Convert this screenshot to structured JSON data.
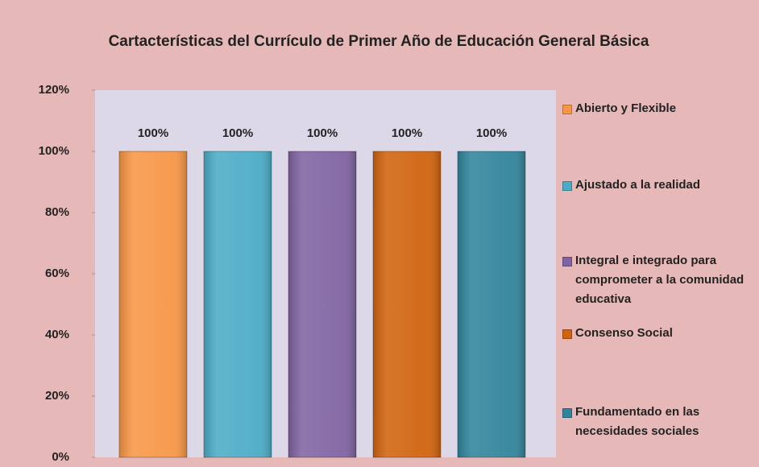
{
  "chart_data": {
    "type": "bar",
    "title": "Cartacterísticas del Currículo de Primer Año de Educación General Básica",
    "series": [
      {
        "name": "Abierto y Flexible",
        "color": "#f79646",
        "values": [
          100
        ],
        "value_labels": [
          "100%"
        ]
      },
      {
        "name": "Ajustado a la realidad",
        "color": "#4bacc6",
        "values": [
          100
        ],
        "value_labels": [
          "100%"
        ]
      },
      {
        "name": "Integral e integrado para comprometer a la comunidad educativa",
        "color": "#8064a2",
        "values": [
          100
        ],
        "value_labels": [
          "100%"
        ]
      },
      {
        "name": "Consenso Social",
        "color": "#d0630e",
        "values": [
          100
        ],
        "value_labels": [
          "100%"
        ]
      },
      {
        "name": "Fundamentado en las necesidades sociales",
        "color": "#31849b",
        "values": [
          100
        ],
        "value_labels": [
          "100%"
        ]
      }
    ],
    "ylim": [
      0,
      120
    ],
    "yticks": [
      {
        "value": 0,
        "label": "0%"
      },
      {
        "value": 20,
        "label": "20%"
      },
      {
        "value": 40,
        "label": "40%"
      },
      {
        "value": 60,
        "label": "60%"
      },
      {
        "value": 80,
        "label": "80%"
      },
      {
        "value": 100,
        "label": "100%"
      },
      {
        "value": 120,
        "label": "120%"
      }
    ],
    "legend": "right"
  }
}
